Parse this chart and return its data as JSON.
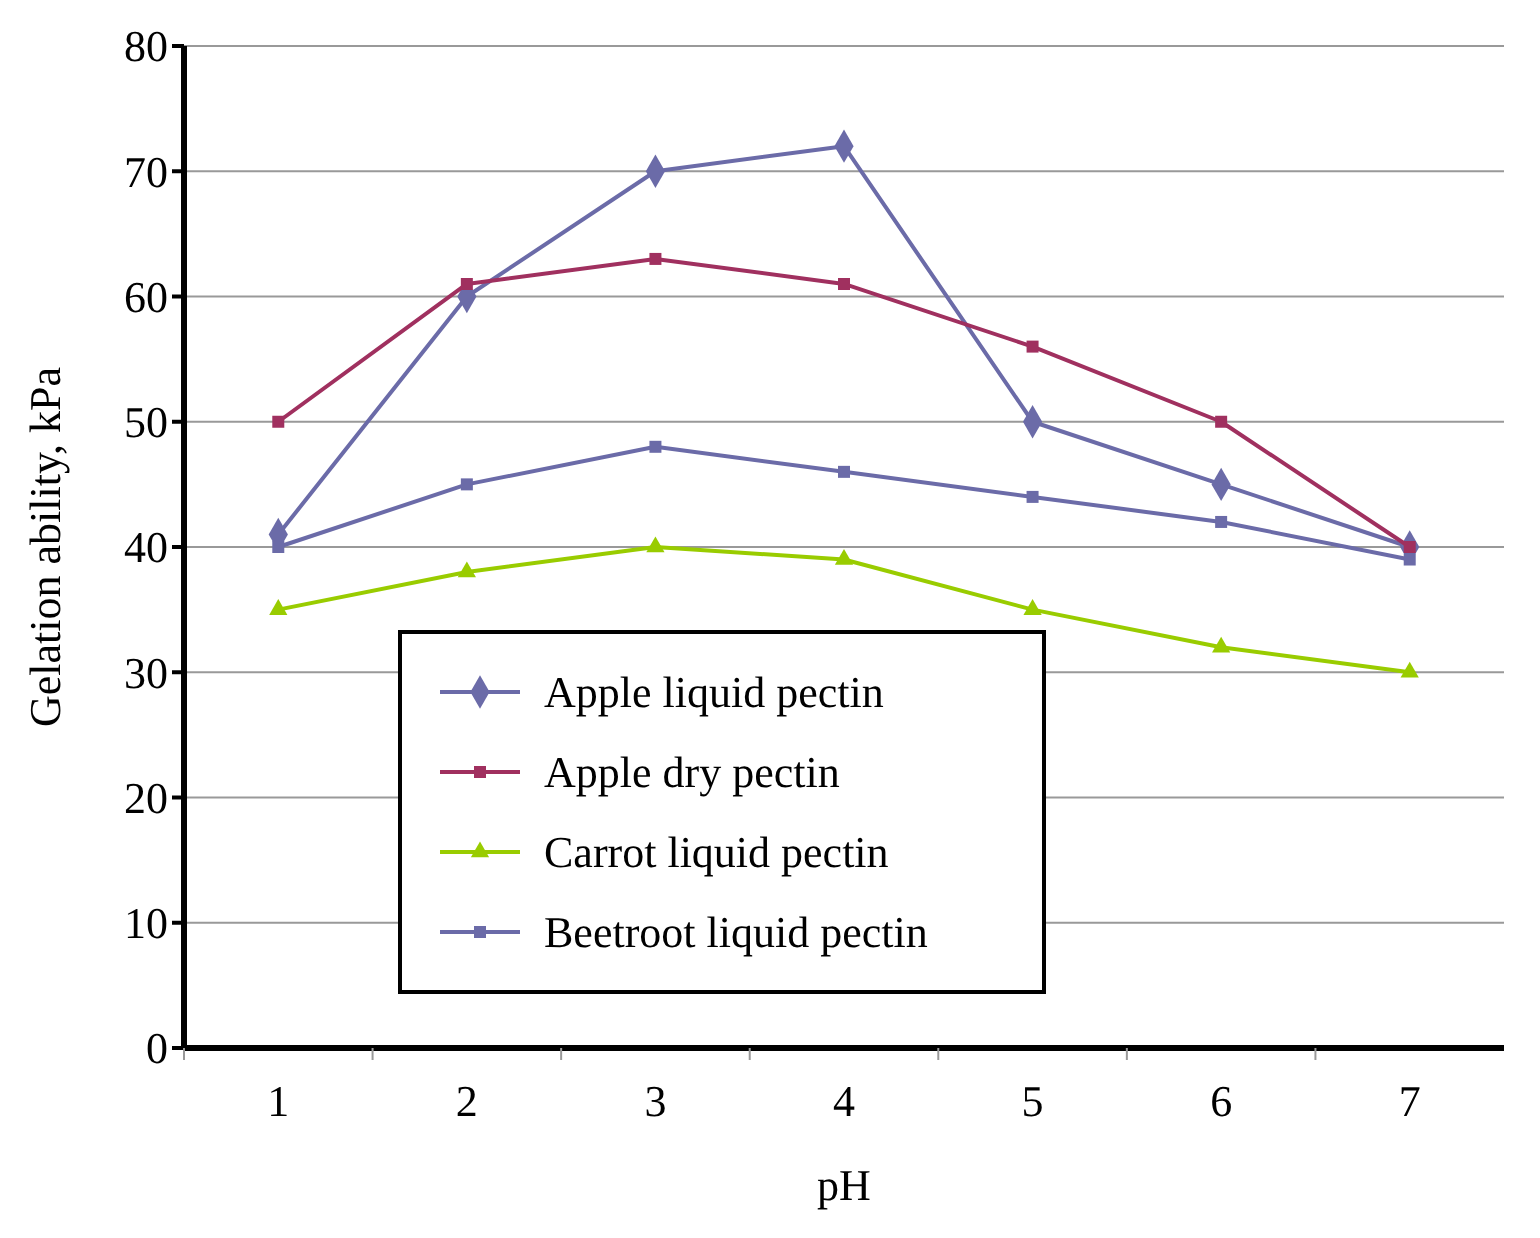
{
  "chart_data": {
    "type": "line",
    "xlabel": "pH",
    "ylabel": "Gelation ability, kPa",
    "categories": [
      "1",
      "2",
      "3",
      "4",
      "5",
      "6",
      "7"
    ],
    "ylim": [
      0,
      80
    ],
    "yticks": [
      0,
      10,
      20,
      30,
      40,
      50,
      60,
      70,
      80
    ],
    "grid": "y",
    "legend": "bottom left",
    "series": [
      {
        "name": "Apple liquid pectin",
        "color": "#6b6ba8",
        "marker": "diamond",
        "values": [
          41,
          60,
          70,
          72,
          50,
          45,
          40
        ]
      },
      {
        "name": "Apple dry pectin",
        "color": "#a0305f",
        "marker": "square",
        "values": [
          50,
          61,
          63,
          61,
          56,
          50,
          40
        ]
      },
      {
        "name": "Carrot liquid pectin",
        "color": "#99cc00",
        "marker": "triangle",
        "values": [
          35,
          38,
          40,
          39,
          35,
          32,
          30
        ]
      },
      {
        "name": "Beetroot liquid pectin",
        "color": "#6b6ba8",
        "marker": "square",
        "values": [
          40,
          45,
          48,
          46,
          44,
          42,
          39
        ]
      }
    ]
  }
}
